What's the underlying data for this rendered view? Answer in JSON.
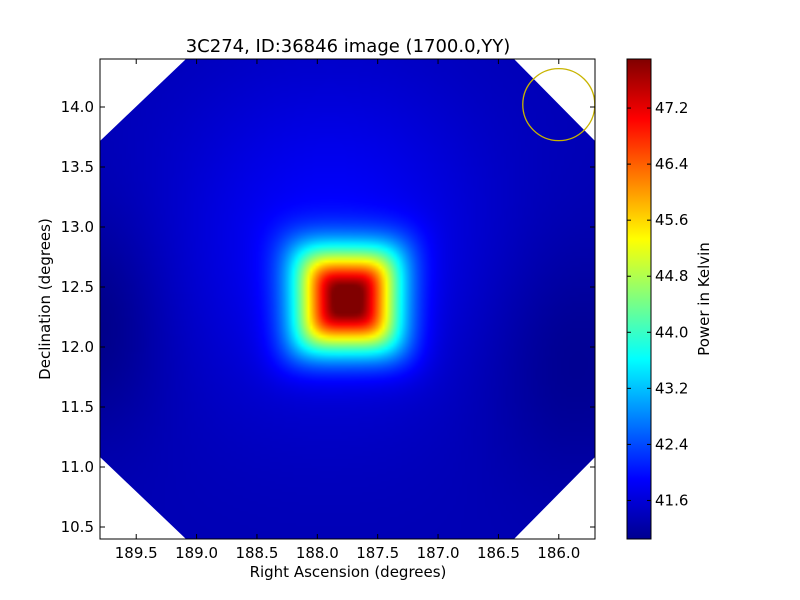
{
  "chart_data": {
    "type": "heatmap",
    "title": "3C274, ID:36846 image (1700.0,YY)",
    "xlabel": "Right Ascension (degrees)",
    "ylabel": "Declination (degrees)",
    "xlim": [
      189.8,
      185.7
    ],
    "ylim": [
      10.4,
      14.4
    ],
    "x_axis_inverted": true,
    "x_ticks": [
      189.5,
      189.0,
      188.5,
      188.0,
      187.5,
      187.0,
      186.5,
      186.0
    ],
    "x_tick_labels": [
      "189.5",
      "189.0",
      "188.5",
      "188.0",
      "187.5",
      "187.0",
      "186.5",
      "186.0"
    ],
    "y_ticks": [
      10.5,
      11.0,
      11.5,
      12.0,
      12.5,
      13.0,
      13.5,
      14.0
    ],
    "y_tick_labels": [
      "10.5",
      "11.0",
      "11.5",
      "12.0",
      "12.5",
      "13.0",
      "13.5",
      "14.0"
    ],
    "colormap": "jet",
    "colorbar": {
      "label": "Power in Kelvin",
      "range": [
        41.05,
        47.9
      ],
      "ticks": [
        41.6,
        42.4,
        43.2,
        44.0,
        44.8,
        45.6,
        46.4,
        47.2
      ],
      "tick_labels": [
        "41.6",
        "42.4",
        "43.2",
        "44.0",
        "44.8",
        "45.6",
        "46.4",
        "47.2"
      ]
    },
    "background_level": 41.4,
    "peak": {
      "ra": 187.75,
      "dec": 12.39,
      "value": 47.9
    },
    "source_half_width_deg": 0.5,
    "diffuse_halo": {
      "ra": 187.9,
      "dec": 12.9,
      "value": 41.9
    },
    "clipped_corners": "octagonal field boundary, white outside",
    "grid": false,
    "marker": {
      "shape": "circle",
      "ra": 186.0,
      "dec": 14.02,
      "radius_deg": 0.3,
      "color": "#c8b400"
    }
  }
}
